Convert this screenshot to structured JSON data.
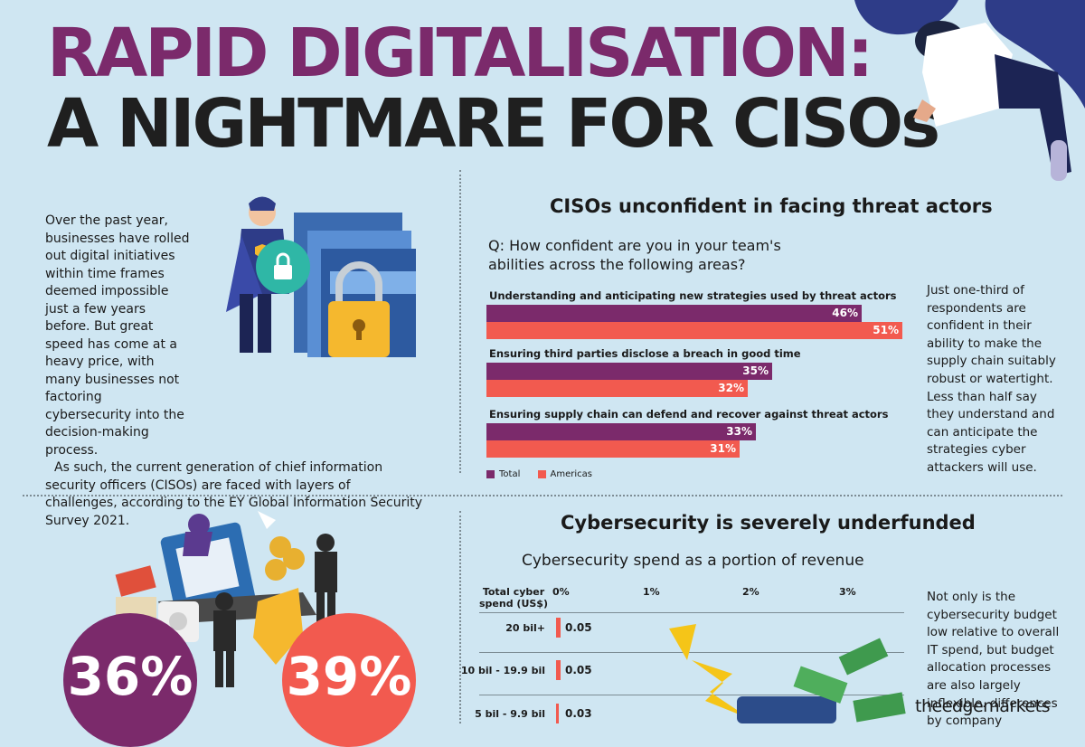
{
  "header": {
    "title_line1": "RAPID DIGITALISATION:",
    "title_line2": "A NIGHTMARE FOR CISOs"
  },
  "intro": {
    "para1": "Over the past year, businesses have rolled out digital initiatives within time frames deemed impossible just a few years before. But great speed has come at a heavy price, with many businesses not factoring cybersecurity into the decision-making process.",
    "para2": "As such, the current generation of chief information security officers (CISOs) are faced with layers of challenges, according to the EY Global Information Security Survey 2021."
  },
  "confidence": {
    "title": "CISOs unconfident in facing threat actors",
    "question": "Q: How confident are you in your team's abilities across the following areas?",
    "side_text": "Just one-third of respondents are confident in their ability to make the supply chain suitably robust or watertight. Less than half say they understand and can anticipate the strategies cyber attackers will use.",
    "legend_total": "Total",
    "legend_americas": "Americas"
  },
  "spend": {
    "title": "Cybersecurity is severely underfunded",
    "subtitle": "Cybersecurity spend as a portion of revenue",
    "col_header": "Total cyber spend (US$)",
    "side_text": "Not only is the cybersecurity budget low relative to overall IT spend, but budget allocation processes are also largely inflexible. differences by company"
  },
  "bubbles": {
    "left": "36%",
    "right": "39%"
  },
  "colors": {
    "total": "#7b2a6b",
    "americas": "#f25a4f",
    "background": "#cfe6f2"
  },
  "watermark": "theedgemarkets",
  "chart_data": [
    {
      "type": "bar",
      "orientation": "horizontal",
      "title": "CISOs unconfident in facing threat actors",
      "categories": [
        "Understanding and anticipating new strategies used by threat actors",
        "Ensuring third parties disclose a breach in good time",
        "Ensuring supply chain can defend and recover against threat actors"
      ],
      "series": [
        {
          "name": "Total",
          "values": [
            46,
            35,
            33
          ],
          "labels": [
            "46%",
            "35%",
            "33%"
          ],
          "color": "#7b2a6b"
        },
        {
          "name": "Americas",
          "values": [
            51,
            32,
            31
          ],
          "labels": [
            "51%",
            "32%",
            "31%"
          ],
          "color": "#f25a4f"
        }
      ],
      "xlim": [
        0,
        51
      ],
      "legend": "bottom-left"
    },
    {
      "type": "bar",
      "orientation": "horizontal",
      "title": "Cybersecurity spend as a portion of revenue",
      "categories": [
        "20 bil+",
        "10 bil - 19.9 bil",
        "5 bil - 9.9 bil"
      ],
      "values": [
        0.05,
        0.05,
        0.03
      ],
      "value_labels": [
        "0.05",
        "0.05",
        "0.03"
      ],
      "x_ticks": [
        "0%",
        "1%",
        "2%",
        "3%"
      ],
      "xlim": [
        0,
        3
      ]
    }
  ]
}
